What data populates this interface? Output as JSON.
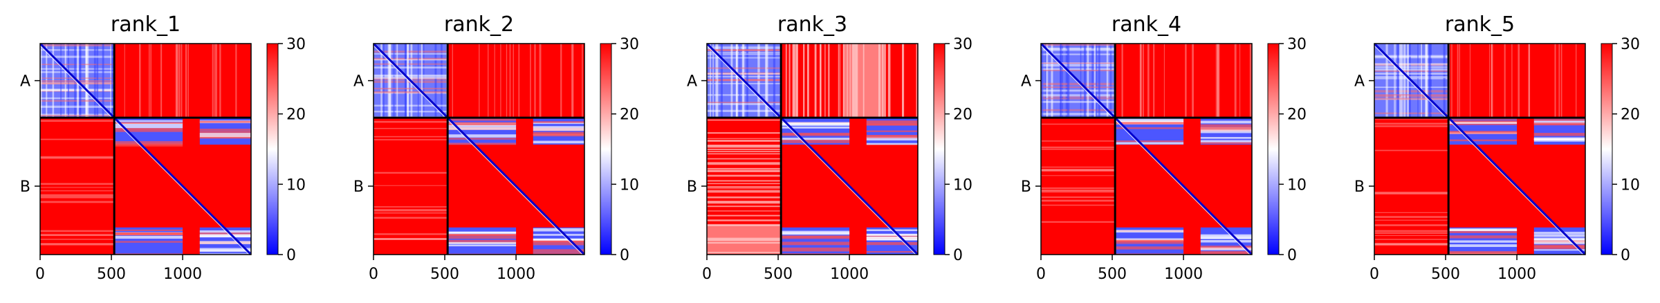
{
  "chart_data": [
    {
      "type": "heatmap",
      "title": "rank_1",
      "chain_labels": [
        "A",
        "B"
      ],
      "chain_ranges": [
        [
          0,
          520
        ],
        [
          520,
          1480
        ]
      ],
      "x_ticks": [
        "0",
        "500",
        "1000"
      ],
      "x_tick_values": [
        0,
        500,
        1000
      ],
      "xlim": [
        0,
        1480
      ],
      "colorbar": {
        "min": 0,
        "max": 30,
        "ticks": [
          "0",
          "10",
          "20",
          "30"
        ],
        "tick_values": [
          0,
          10,
          20,
          30
        ],
        "colormap": "bwr"
      },
      "inter_chain_variation": "low"
    },
    {
      "type": "heatmap",
      "title": "rank_2",
      "chain_labels": [
        "A",
        "B"
      ],
      "chain_ranges": [
        [
          0,
          520
        ],
        [
          520,
          1480
        ]
      ],
      "x_ticks": [
        "0",
        "500",
        "1000"
      ],
      "x_tick_values": [
        0,
        500,
        1000
      ],
      "xlim": [
        0,
        1480
      ],
      "colorbar": {
        "min": 0,
        "max": 30,
        "ticks": [
          "0",
          "10",
          "20",
          "30"
        ],
        "tick_values": [
          0,
          10,
          20,
          30
        ],
        "colormap": "bwr"
      },
      "inter_chain_variation": "low"
    },
    {
      "type": "heatmap",
      "title": "rank_3",
      "chain_labels": [
        "A",
        "B"
      ],
      "chain_ranges": [
        [
          0,
          520
        ],
        [
          520,
          1480
        ]
      ],
      "x_ticks": [
        "0",
        "500",
        "1000"
      ],
      "x_tick_values": [
        0,
        500,
        1000
      ],
      "xlim": [
        0,
        1480
      ],
      "colorbar": {
        "min": 0,
        "max": 30,
        "ticks": [
          "0",
          "10",
          "20",
          "30"
        ],
        "tick_values": [
          0,
          10,
          20,
          30
        ],
        "colormap": "bwr"
      },
      "inter_chain_variation": "high"
    },
    {
      "type": "heatmap",
      "title": "rank_4",
      "chain_labels": [
        "A",
        "B"
      ],
      "chain_ranges": [
        [
          0,
          520
        ],
        [
          520,
          1480
        ]
      ],
      "x_ticks": [
        "0",
        "500",
        "1000"
      ],
      "x_tick_values": [
        0,
        500,
        1000
      ],
      "xlim": [
        0,
        1480
      ],
      "colorbar": {
        "min": 0,
        "max": 30,
        "ticks": [
          "0",
          "10",
          "20",
          "30"
        ],
        "tick_values": [
          0,
          10,
          20,
          30
        ],
        "colormap": "bwr"
      },
      "inter_chain_variation": "low"
    },
    {
      "type": "heatmap",
      "title": "rank_5",
      "chain_labels": [
        "A",
        "B"
      ],
      "chain_ranges": [
        [
          0,
          520
        ],
        [
          520,
          1480
        ]
      ],
      "x_ticks": [
        "0",
        "500",
        "1000"
      ],
      "x_tick_values": [
        0,
        500,
        1000
      ],
      "xlim": [
        0,
        1480
      ],
      "colorbar": {
        "min": 0,
        "max": 30,
        "ticks": [
          "0",
          "10",
          "20",
          "30"
        ],
        "tick_values": [
          0,
          10,
          20,
          30
        ],
        "colormap": "bwr"
      },
      "inter_chain_variation": "low"
    }
  ],
  "colors": {
    "high": "#ff0000",
    "mid": "#ffffff",
    "low": "#0000ff",
    "divider": "#000000"
  }
}
